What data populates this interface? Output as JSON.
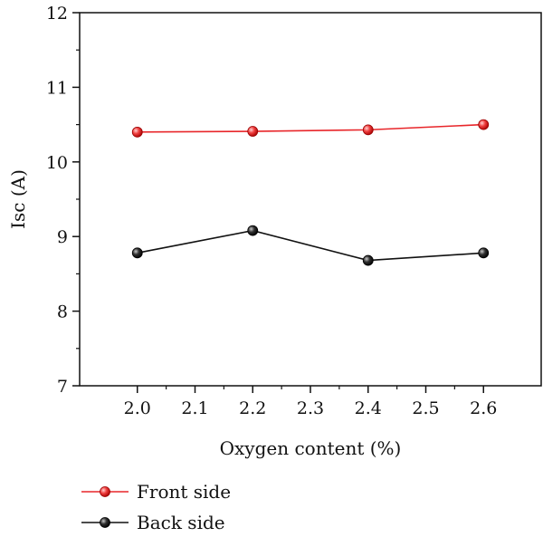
{
  "chart_data": {
    "type": "line",
    "xlabel": "Oxygen content (%)",
    "ylabel": "Isc (A)",
    "xlim": [
      1.9,
      2.7
    ],
    "ylim": [
      7,
      12
    ],
    "xticks": [
      "2.0",
      "2.1",
      "2.2",
      "2.3",
      "2.4",
      "2.5",
      "2.6"
    ],
    "yticks": [
      "7",
      "8",
      "9",
      "10",
      "11",
      "12"
    ],
    "grid": false,
    "legend_position": "bottom-left",
    "series": [
      {
        "name": "Front side",
        "color": "#e8262a",
        "x": [
          2.0,
          2.2,
          2.4,
          2.6
        ],
        "y": [
          10.4,
          10.41,
          10.43,
          10.5
        ]
      },
      {
        "name": "Back side",
        "color": "#111111",
        "x": [
          2.0,
          2.2,
          2.4,
          2.6
        ],
        "y": [
          8.78,
          9.08,
          8.68,
          8.78
        ]
      }
    ]
  }
}
